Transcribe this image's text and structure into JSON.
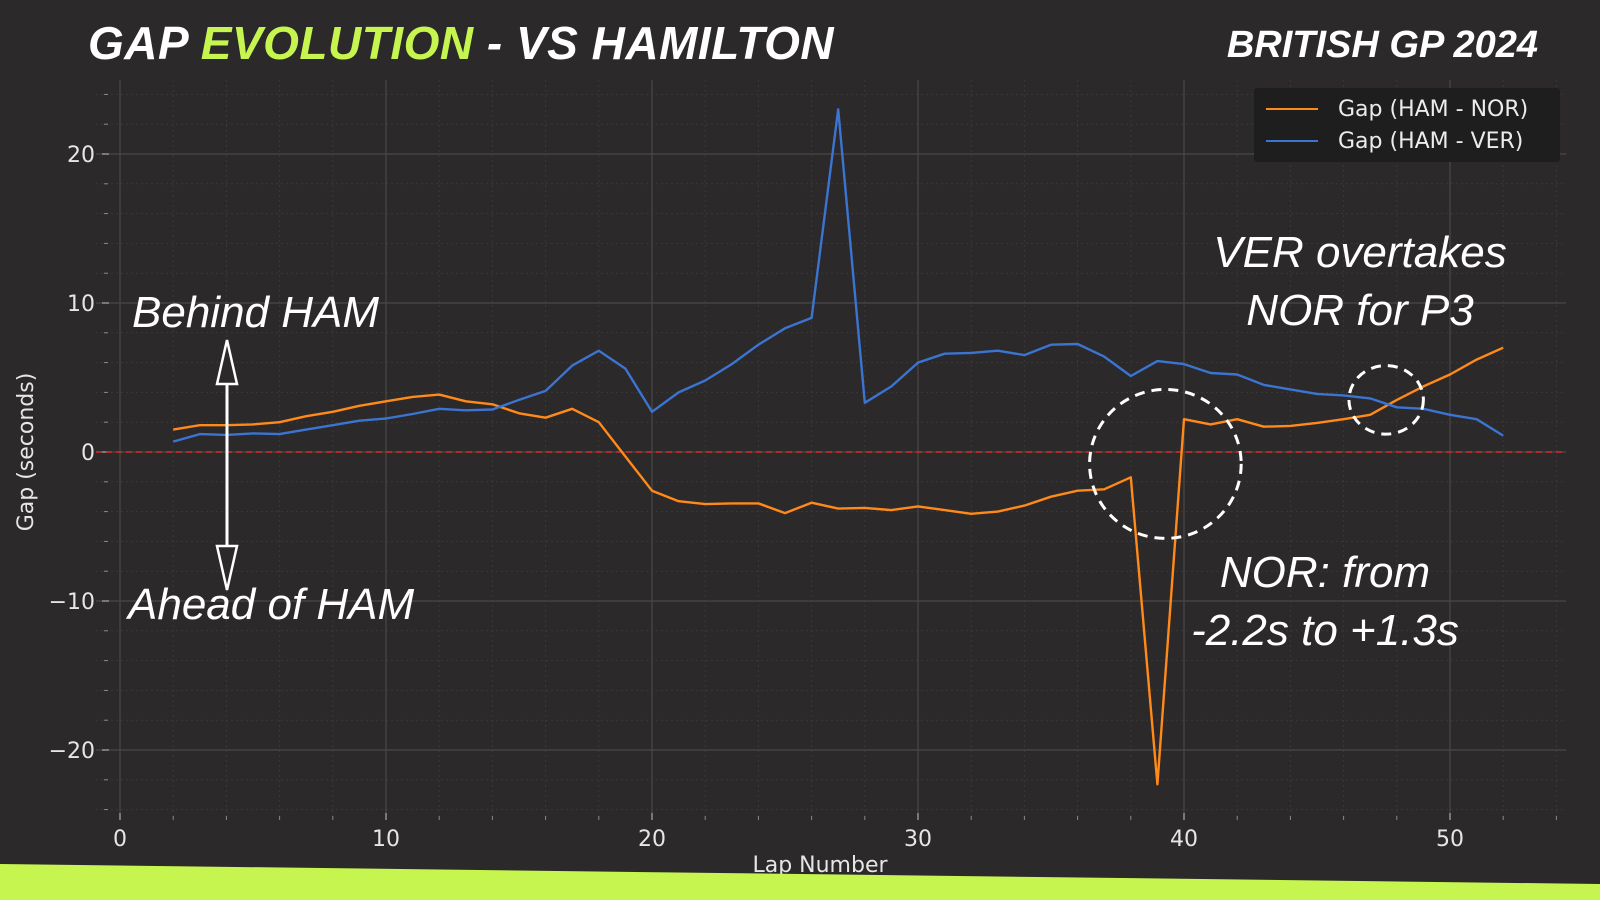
{
  "header": {
    "title_part1": "GAP",
    "title_highlight": "EVOLUTION",
    "title_part2": "- VS HAMILTON",
    "race": "BRITISH GP 2024"
  },
  "annotations": {
    "behind": "Behind HAM",
    "ahead": "Ahead of HAM",
    "ver_line1": "VER overtakes",
    "ver_line2": "NOR for P3",
    "nor_line1": "NOR: from",
    "nor_line2": "-2.2s to +1.3s"
  },
  "colors": {
    "background": "#2b2929",
    "accent": "#c6f54f",
    "nor": "#ff8a1a",
    "ver": "#3b74d1",
    "zero_line": "#d42b2b"
  },
  "chart_data": {
    "type": "line",
    "xlabel": "Lap Number",
    "ylabel": "Gap (seconds)",
    "xlim": [
      0,
      55
    ],
    "ylim": [
      -25,
      25
    ],
    "xticks": [
      0,
      10,
      20,
      30,
      40,
      50
    ],
    "yticks": [
      -20,
      -10,
      0,
      10,
      20
    ],
    "grid": true,
    "legend_position": "top-right",
    "reference_line": {
      "y": 0,
      "style": "dashed"
    },
    "x": [
      2,
      3,
      4,
      5,
      6,
      7,
      8,
      9,
      10,
      11,
      12,
      13,
      14,
      15,
      16,
      17,
      18,
      19,
      20,
      21,
      22,
      23,
      24,
      25,
      26,
      27,
      28,
      29,
      30,
      31,
      32,
      33,
      34,
      35,
      36,
      37,
      38,
      39,
      40,
      41,
      42,
      43,
      44,
      45,
      46,
      47,
      48,
      49,
      50,
      51,
      52
    ],
    "series": [
      {
        "name": "Gap (HAM - NOR)",
        "color": "#ff8a1a",
        "values": [
          1.5,
          1.8,
          1.8,
          1.85,
          2.0,
          2.4,
          2.7,
          3.1,
          3.4,
          3.7,
          3.85,
          3.4,
          3.2,
          2.6,
          2.3,
          2.9,
          2.0,
          -0.3,
          -2.6,
          -3.3,
          -3.5,
          -3.45,
          -3.45,
          -4.1,
          -3.4,
          -3.8,
          -3.75,
          -3.9,
          -3.65,
          -3.9,
          -4.15,
          -4.0,
          -3.6,
          -3.0,
          -2.6,
          -2.5,
          -1.7,
          -22.3,
          2.2,
          1.85,
          2.2,
          1.7,
          1.75,
          1.95,
          2.2,
          2.5,
          3.5,
          4.4,
          5.2,
          6.2,
          7.0
        ]
      },
      {
        "name": "Gap (HAM - VER)",
        "color": "#3b74d1",
        "values": [
          0.7,
          1.2,
          1.15,
          1.25,
          1.2,
          1.5,
          1.8,
          2.1,
          2.25,
          2.55,
          2.9,
          2.8,
          2.85,
          3.5,
          4.1,
          5.8,
          6.8,
          5.6,
          2.7,
          4.0,
          4.8,
          5.9,
          7.2,
          8.3,
          9.0,
          23.0,
          3.3,
          4.4,
          6.0,
          6.6,
          6.65,
          6.8,
          6.5,
          7.2,
          7.25,
          6.4,
          5.1,
          6.1,
          5.9,
          5.3,
          5.2,
          4.5,
          4.2,
          3.9,
          3.8,
          3.6,
          3.0,
          2.9,
          2.5,
          2.2,
          1.1
        ]
      }
    ],
    "highlight_circles": [
      {
        "x": 39.3,
        "y": -0.8,
        "x_radius": 2.85,
        "y_radius": 5.0
      },
      {
        "x": 47.6,
        "y": 3.5,
        "x_radius": 1.4,
        "y_radius": 2.3
      }
    ]
  }
}
